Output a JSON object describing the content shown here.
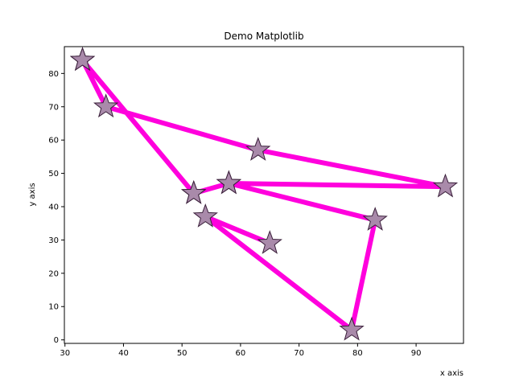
{
  "chart_data": {
    "type": "line",
    "title": "Demo Matplotlib",
    "xlabel": "x axis",
    "ylabel": "y axis",
    "xlim": [
      29.9,
      98.1
    ],
    "ylim": [
      -1.05,
      88.05
    ],
    "xticks": [
      30,
      40,
      50,
      60,
      70,
      80,
      90
    ],
    "yticks": [
      0,
      10,
      20,
      30,
      40,
      50,
      60,
      70,
      80
    ],
    "grid": false,
    "series": [
      {
        "x": [
          33,
          37,
          63,
          95,
          58,
          52,
          33,
          52,
          58,
          83,
          79,
          54,
          65
        ],
        "y": [
          84,
          70,
          57,
          46,
          47,
          44,
          84,
          44,
          47,
          36,
          3,
          37,
          29
        ],
        "line_color": "#ff00dd",
        "marker": "star",
        "marker_fill": "#a98aaa",
        "marker_edge": "#3a1f3a"
      }
    ]
  }
}
